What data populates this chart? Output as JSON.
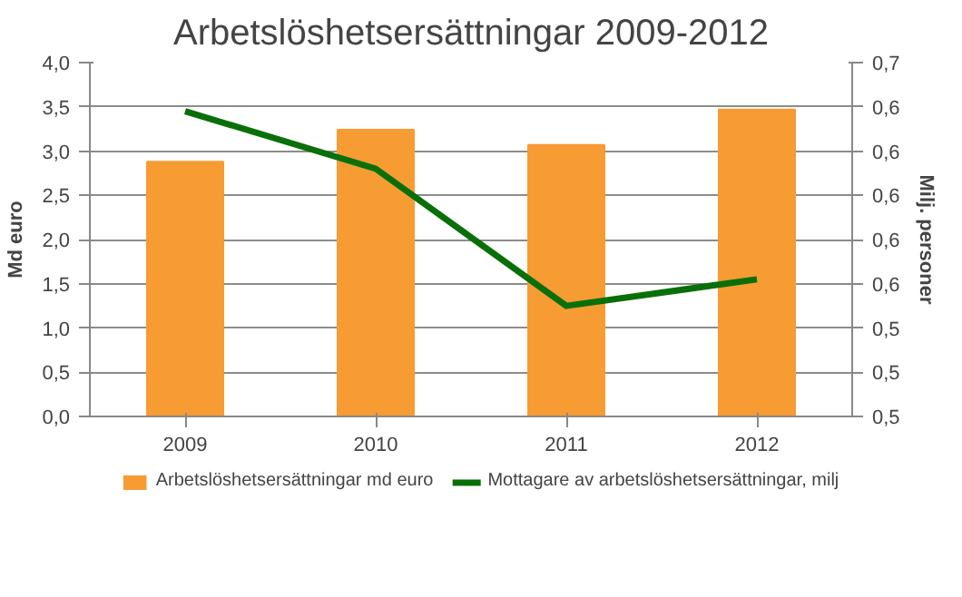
{
  "chart_data": {
    "type": "bar",
    "title": "Arbetslöshetsersättningar 2009-2012",
    "ylabel": "Md euro",
    "y2label": "Milj. personer",
    "categories": [
      "2009",
      "2010",
      "2011",
      "2012"
    ],
    "series": [
      {
        "name": "Arbetslöshetsersättningar md euro",
        "color": "#f79b33",
        "values": [
          2.88,
          3.24,
          3.07,
          3.47
        ]
      },
      {
        "name": "Mottagare av arbetslöshetsersättningar, milj",
        "type": "line",
        "axis": "y2",
        "color": "#097009",
        "values": [
          0.638,
          0.612,
          0.55,
          0.562
        ]
      }
    ],
    "ylim": [
      0,
      4
    ],
    "yticks": [
      {
        "value": 0,
        "label": "0,0"
      },
      {
        "value": 0.5,
        "label": "0,5"
      },
      {
        "value": 1,
        "label": "1,0"
      },
      {
        "value": 1.5,
        "label": "1,5"
      },
      {
        "value": 2,
        "label": "2,0"
      },
      {
        "value": 2.5,
        "label": "2,5"
      },
      {
        "value": 3,
        "label": "3,0"
      },
      {
        "value": 3.5,
        "label": "3,5"
      },
      {
        "value": 4,
        "label": "4,0"
      }
    ],
    "y2lim": [
      0.5,
      0.66
    ],
    "y2ticks": [
      {
        "value": 0.5,
        "label": "0,5"
      },
      {
        "value": 0.52,
        "label": "0,5"
      },
      {
        "value": 0.54,
        "label": "0,5"
      },
      {
        "value": 0.56,
        "label": "0,6"
      },
      {
        "value": 0.58,
        "label": "0,6"
      },
      {
        "value": 0.6,
        "label": "0,6"
      },
      {
        "value": 0.62,
        "label": "0,6"
      },
      {
        "value": 0.64,
        "label": "0,6"
      },
      {
        "value": 0.66,
        "label": "0,7"
      }
    ],
    "grid": "y",
    "legend": "bottom",
    "marker": "none"
  }
}
